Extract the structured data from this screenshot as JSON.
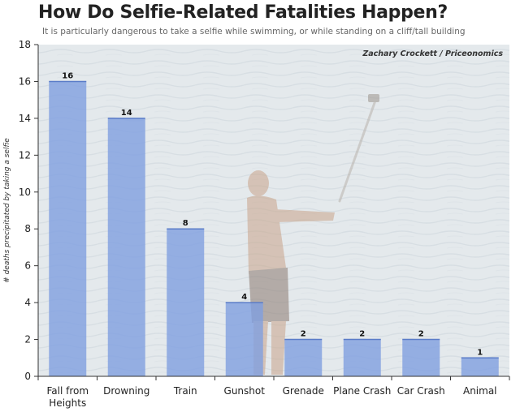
{
  "header": {
    "title": "How Do Selfie-Related Fatalities Happen?",
    "subtitle": "It is particularly dangerous to take a selfie while swimming, or while standing on a cliff/tall building"
  },
  "credit": "Zachary Crockett / Priceonomics",
  "colors": {
    "bar": "#7f9fe0",
    "background_sea": "#e4e9ec",
    "frame": "#333333"
  },
  "chart_data": {
    "type": "bar",
    "title": "How Do Selfie-Related Fatalities Happen?",
    "subtitle": "It is particularly dangerous to take a selfie while swimming, or while standing on a cliff/tall building",
    "xlabel": "",
    "ylabel": "# deaths precipitated by taking a selfie",
    "categories": [
      [
        "Fall from",
        "Heights"
      ],
      [
        "Drowning"
      ],
      [
        "Train"
      ],
      [
        "Gunshot"
      ],
      [
        "Grenade"
      ],
      [
        "Plane Crash"
      ],
      [
        "Car Crash"
      ],
      [
        "Animal"
      ]
    ],
    "values": [
      16,
      14,
      8,
      4,
      2,
      2,
      2,
      1
    ],
    "data_labels": [
      "16",
      "14",
      "8",
      "4",
      "2",
      "2",
      "2",
      "1"
    ],
    "ylim": [
      0,
      18
    ],
    "yticks": [
      0,
      2,
      4,
      6,
      8,
      10,
      12,
      14,
      16,
      18
    ],
    "grid": false,
    "background": "photo of a man taking a selfie with a selfie stick in the sea"
  }
}
